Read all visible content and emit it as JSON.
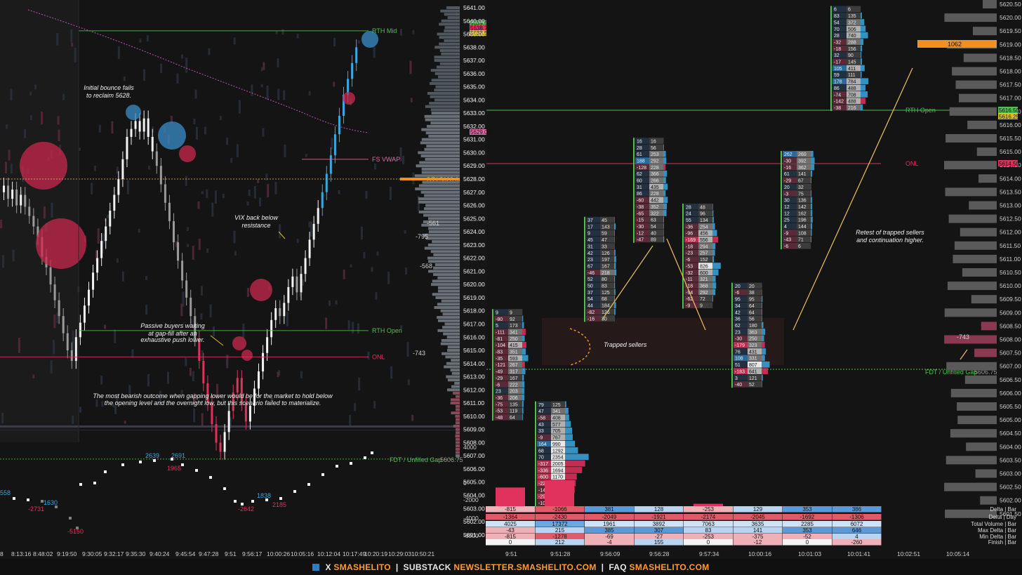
{
  "colors": {
    "bg": "#141414",
    "up": "#f2f2f2",
    "blue": "#3aa7e0",
    "red": "#e0325c",
    "green": "#4ec24e",
    "pink": "#e56aa8",
    "orange": "#f09020",
    "yellow": "#e0c020",
    "bubbleRed": "#c8284e",
    "bubbleBlue": "#3a8cc8"
  },
  "footer": {
    "x_label": "X",
    "x_handle": "SMASHELITO",
    "substack_label": "SUBSTACK",
    "substack_url": "NEWSLETTER.SMASHELITO.COM",
    "faq_label": "FAQ",
    "faq_url": "SMASHELITO.COM"
  },
  "chart_data": [
    {
      "type": "candlestick",
      "title": "",
      "price_range": [
        5601.0,
        5641.0
      ],
      "levels": [
        {
          "label": "RTH Mid",
          "price": 5639.25
        },
        {
          "label": "FS VWAP",
          "price": 5629.5
        },
        {
          "label": "DT1",
          "price": 5628.0,
          "tag": "5628.00"
        },
        {
          "label": "RTH Open",
          "price": 5616.5
        },
        {
          "label": "ONL",
          "price": 5614.5
        },
        {
          "label": "FDT / Unfilled Gap",
          "price": 5606.75,
          "tag": "5606.75"
        }
      ],
      "price_tags": [
        {
          "text": "5639.50",
          "color": "green"
        },
        {
          "text": "5638.75",
          "color": "red"
        },
        {
          "text": "5638.50",
          "color": "yellow"
        },
        {
          "text": "5629.00",
          "color": "pink"
        }
      ],
      "volume_profile_labels": [
        "-561",
        "-795",
        "-568",
        "-743"
      ],
      "annotations": [
        "Initial bounce fails to reclaim 5628.",
        "VIX back below resistance",
        "Passive buyers waiting at gap-fill after an exhaustive push lower.",
        "The most bearish outcome when gapping lower would be for the market to hold below the opening level and the overnight low, but this scenario failed to materialize."
      ],
      "x_ticks": [
        "8",
        "8:13:16",
        "8:48:02",
        "9:19:50",
        "9:30:05",
        "9:32:17",
        "9:35:30",
        "9:40:24",
        "9:45:54",
        "9:47:28",
        "9:51",
        "9:56:17",
        "10:00:26",
        "10:05:16",
        "10:12:04",
        "10:17:49",
        "10:20:19",
        "10:29:03",
        "10:50:21"
      ],
      "cumulative_delta_labels": [
        "558",
        "-2731",
        "1630",
        "-5150",
        "2639",
        "2691",
        "1965",
        "1838",
        "-2642",
        "2185"
      ]
    },
    {
      "type": "footprint",
      "price_axis": [
        "5641.00",
        "5640.00",
        "5639.00",
        "5638.00",
        "5637.00",
        "5636.00",
        "5635.00",
        "5634.00",
        "5633.00",
        "5632.00",
        "5631.00",
        "5630.00",
        "5629.00",
        "5628.00",
        "5627.00",
        "5626.00",
        "5625.00",
        "5624.00",
        "5623.00",
        "5622.00",
        "5621.00",
        "5620.00",
        "5619.00",
        "5618.00",
        "5617.00",
        "5616.00",
        "5615.00",
        "5614.00",
        "5613.00",
        "5612.00",
        "5611.00",
        "5610.00",
        "5609.00",
        "5608.00",
        "5607.00",
        "5606.00",
        "5605.00",
        "5604.00",
        "5603.00",
        "5602.00",
        "5601.00"
      ],
      "levels": [
        {
          "label": "RTH Open"
        },
        {
          "label": "ONL"
        },
        {
          "label": "FDT / Unfilled Gap",
          "tag": "5606.75"
        }
      ],
      "annotations": [
        "Trapped sellers",
        "Retest of trapped sellers and continuation higher."
      ],
      "bars": [
        {
          "top": 5618,
          "rows": [
            [
              "9",
              "9"
            ],
            [
              "-80",
              "92"
            ],
            [
              "5",
              "173"
            ],
            [
              "-111",
              "341"
            ],
            [
              "-81",
              "250"
            ],
            [
              "-104",
              "415"
            ],
            [
              "-83",
              "351"
            ],
            [
              "-35",
              "593"
            ],
            [
              "-121",
              "267"
            ],
            [
              "-49",
              "317"
            ],
            [
              "-29",
              "167"
            ],
            [
              "-6",
              "222"
            ],
            [
              "23",
              "203"
            ],
            [
              "-36",
              "206"
            ],
            [
              "-75",
              "135"
            ],
            [
              "-53",
              "119"
            ],
            [
              "-48",
              "64"
            ]
          ]
        },
        {
          "top": 5611,
          "rows": [
            [
              "79",
              "125"
            ],
            [
              "47",
              "341"
            ],
            [
              "-58",
              "408"
            ],
            [
              "43",
              "577"
            ],
            [
              "33",
              "705"
            ],
            [
              "-9",
              "767"
            ],
            [
              "164",
              "990"
            ],
            [
              "68",
              "1292"
            ],
            [
              "70",
              "2354"
            ],
            [
              "-317",
              "2005"
            ],
            [
              "-336",
              "1694"
            ],
            [
              "-600",
              "1170"
            ],
            [
              "-228",
              "1068"
            ],
            [
              "-147",
              "959"
            ],
            [
              "-292",
              "474"
            ],
            [
              "-103",
              "103"
            ]
          ]
        },
        {
          "top": 5625,
          "rows": [
            [
              "37",
              "45"
            ],
            [
              "17",
              "143"
            ],
            [
              "9",
              "59"
            ],
            [
              "45",
              "47"
            ],
            [
              "31",
              "33"
            ],
            [
              "42",
              "126"
            ],
            [
              "23",
              "197"
            ],
            [
              "67",
              "167"
            ],
            [
              "-46",
              "218"
            ],
            [
              "52",
              "80"
            ],
            [
              "50",
              "83"
            ],
            [
              "37",
              "125"
            ],
            [
              "54",
              "68"
            ],
            [
              "44",
              "184"
            ],
            [
              "-82",
              "126"
            ],
            [
              "-16",
              "30"
            ]
          ]
        },
        {
          "top": 5631,
          "rows": [
            [
              "16",
              "16"
            ],
            [
              "28",
              "56"
            ],
            [
              "61",
              "253"
            ],
            [
              "188",
              "292"
            ],
            [
              "-128",
              "228"
            ],
            [
              "62",
              "366"
            ],
            [
              "60",
              "266"
            ],
            [
              "31",
              "435"
            ],
            [
              "86",
              "228"
            ],
            [
              "-60",
              "442"
            ],
            [
              "-38",
              "352"
            ],
            [
              "-65",
              "322"
            ],
            [
              "-15",
              "63"
            ],
            [
              "-30",
              "54"
            ],
            [
              "-12",
              "40"
            ],
            [
              "-47",
              "89"
            ]
          ]
        },
        {
          "top": 5626,
          "rows": [
            [
              "28",
              "48"
            ],
            [
              "24",
              "96"
            ],
            [
              "55",
              "134"
            ],
            [
              "-36",
              "254"
            ],
            [
              "-96",
              "456"
            ],
            [
              "-169",
              "556"
            ],
            [
              "-18",
              "294"
            ],
            [
              "-23",
              "257"
            ],
            [
              "-6",
              "152"
            ],
            [
              "-53",
              "826"
            ],
            [
              "-32",
              "600"
            ],
            [
              "-11",
              "321"
            ],
            [
              "-18",
              "368"
            ],
            [
              "-94",
              "292"
            ],
            [
              "-62",
              "72"
            ],
            [
              "-9",
              "9"
            ]
          ]
        },
        {
          "top": 5620,
          "rows": [
            [
              "20",
              "20"
            ],
            [
              "-6",
              "38"
            ],
            [
              "95",
              "95"
            ],
            [
              "34",
              "64"
            ],
            [
              "42",
              "64"
            ],
            [
              "36",
              "56"
            ],
            [
              "62",
              "180"
            ],
            [
              "23",
              "363"
            ],
            [
              "-30",
              "250"
            ],
            [
              "-179",
              "323"
            ],
            [
              "76",
              "431"
            ],
            [
              "108",
              "331"
            ],
            [
              "51",
              "807"
            ],
            [
              "-183",
              "641"
            ],
            [
              "3",
              "121"
            ],
            [
              "-40",
              "52"
            ]
          ]
        },
        {
          "top": 5630,
          "rows": [
            [
              "262",
              "260"
            ],
            [
              "-30",
              "392"
            ],
            [
              "-16",
              "362"
            ],
            [
              "61",
              "141"
            ],
            [
              "-29",
              "67"
            ],
            [
              "20",
              "32"
            ],
            [
              "-3",
              "75"
            ],
            [
              "30",
              "136"
            ],
            [
              "12",
              "142"
            ],
            [
              "12",
              "162"
            ],
            [
              "25",
              "196"
            ],
            [
              "4",
              "144"
            ],
            [
              "-9",
              "108"
            ],
            [
              "-43",
              "71"
            ],
            [
              "-6",
              "6"
            ]
          ]
        },
        {
          "top": 5641,
          "rows": [
            [
              "6",
              "6"
            ],
            [
              "83",
              "135"
            ],
            [
              "54",
              "372"
            ],
            [
              "70",
              "506"
            ],
            [
              "28",
              "740"
            ],
            [
              "-32",
              "288"
            ],
            [
              "-18",
              "156"
            ],
            [
              "32",
              "90"
            ],
            [
              "-17",
              "145"
            ],
            [
              "105",
              "411"
            ],
            [
              "59",
              "111"
            ],
            [
              "178",
              "784"
            ],
            [
              "86",
              "488"
            ],
            [
              "-74",
              "708"
            ],
            [
              "-142",
              "488"
            ],
            [
              "-38",
              "216"
            ]
          ]
        }
      ],
      "delta_histogram": {
        "ylim": [
          -6000,
          4000
        ],
        "ticks": [
          "4000",
          "2000",
          "0",
          "-2000",
          "-4000",
          "-6000"
        ],
        "values": [
          -815,
          -1066,
          381,
          128,
          -253,
          129,
          353,
          386
        ]
      },
      "stats": {
        "row_labels": [
          "Delta | Bar",
          "Delta | Day",
          "Total Volume | Bar",
          "Max Delta | Bar",
          "Min Delta | Bar",
          "Finish | Bar"
        ],
        "rows": [
          [
            "-815",
            "-1066",
            "381",
            "128",
            "-253",
            "129",
            "353",
            "386"
          ],
          [
            "-1364",
            "-2430",
            "-2049",
            "-1921",
            "-2174",
            "-2045",
            "-1692",
            "-1306"
          ],
          [
            "4025",
            "17372",
            "1961",
            "3892",
            "7063",
            "3635",
            "2285",
            "6072"
          ],
          [
            "-43",
            "215",
            "385",
            "307",
            "83",
            "141",
            "353",
            "646"
          ],
          [
            "-815",
            "-1278",
            "-69",
            "-27",
            "-253",
            "-375",
            "-52",
            "4"
          ],
          [
            "0",
            "212",
            "-4",
            "155",
            "0",
            "-12",
            "0",
            "-260"
          ]
        ]
      },
      "x_ticks": [
        "9:51",
        "9:51:28",
        "9:56:09",
        "9:56:28",
        "9:57:34",
        "10:00:16",
        "10:01:03",
        "10:01:41",
        "10:02:51",
        "10:05:14"
      ],
      "right_price_axis": [
        "5620.50",
        "5620.00",
        "5619.50",
        "5619.00",
        "5618.50",
        "5618.00",
        "5617.50",
        "5617.00",
        "5616.50",
        "5616.00",
        "5615.50",
        "5615.00",
        "5614.50",
        "5614.00",
        "5613.50",
        "5613.00",
        "5612.50",
        "5612.00",
        "5611.50",
        "5611.00",
        "5610.50",
        "5610.00",
        "5609.50",
        "5609.00",
        "5608.50",
        "5608.00",
        "5607.50",
        "5607.00",
        "5606.50",
        "5606.00",
        "5605.50",
        "5605.00",
        "5604.50",
        "5604.00",
        "5603.50",
        "5603.00",
        "5602.50",
        "5602.00",
        "5601.50"
      ],
      "right_price_tags": [
        "5616.50",
        "5616.25",
        "5614.50"
      ],
      "right_profile_labels": [
        "1062",
        "-743"
      ]
    }
  ]
}
